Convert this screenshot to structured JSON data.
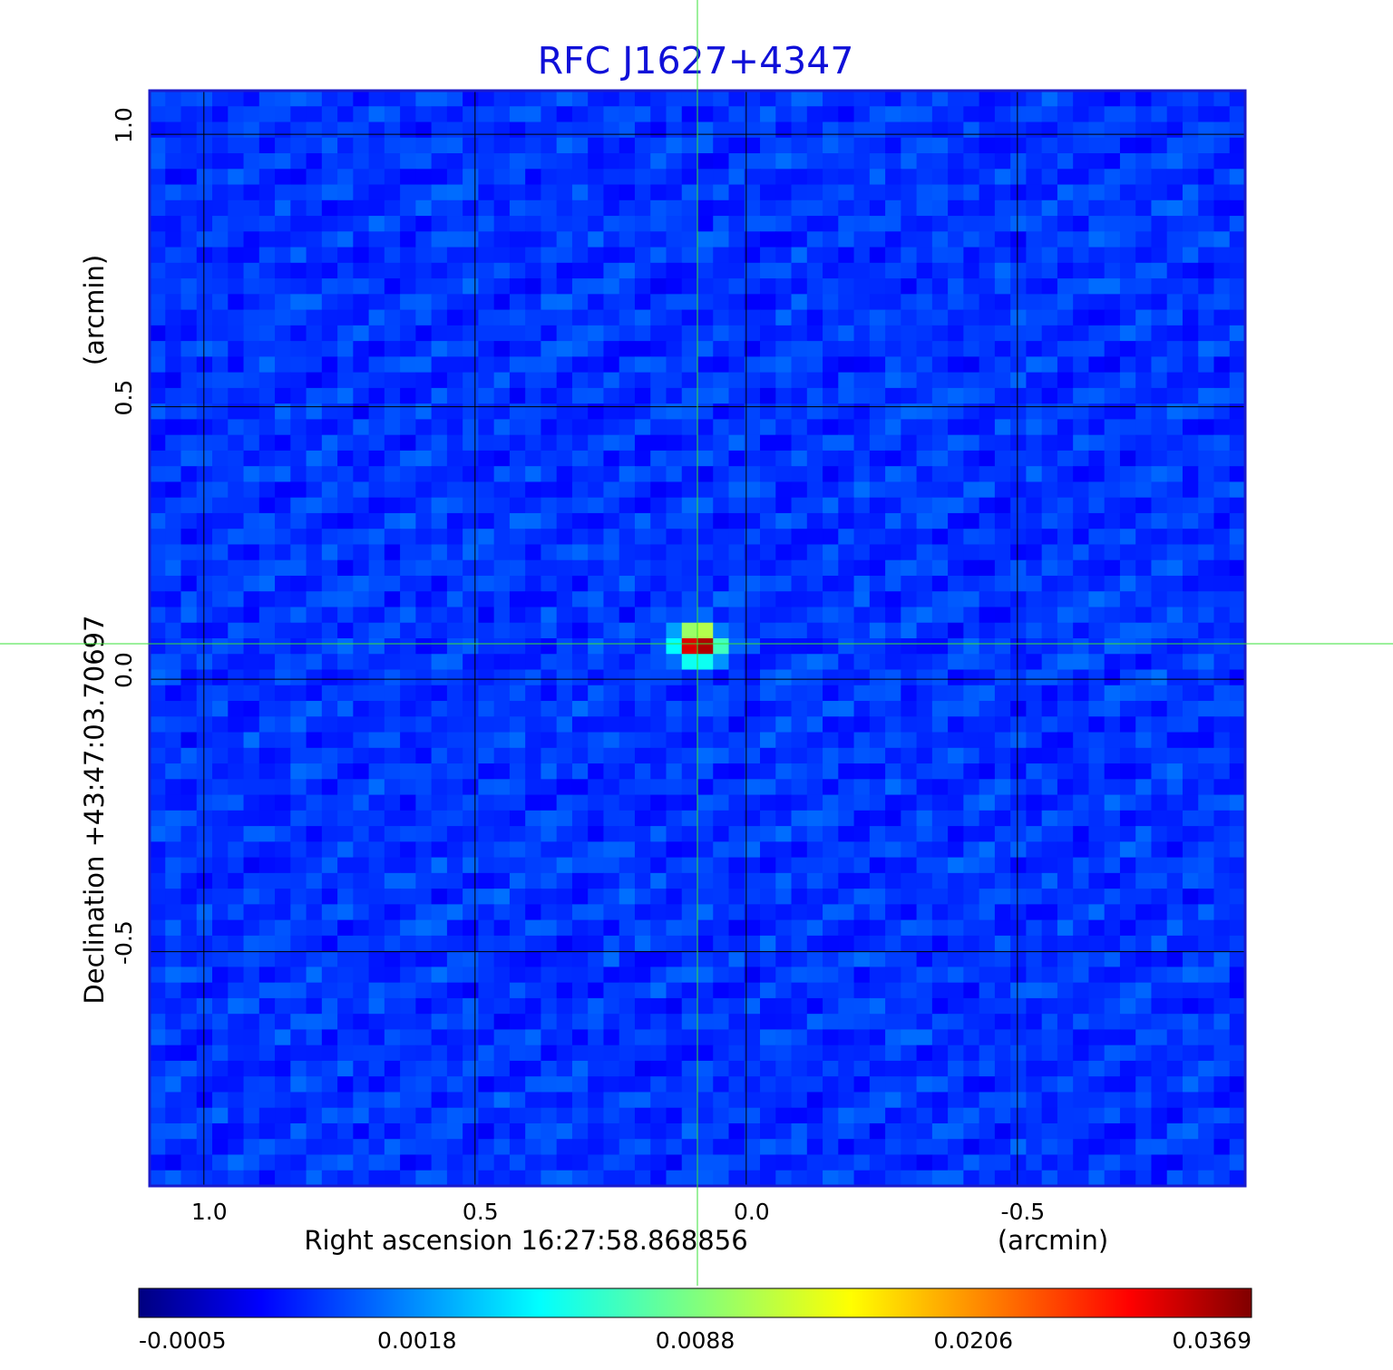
{
  "chart_data": {
    "type": "heatmap",
    "title": "RFC J1627+4347",
    "xlabel": "Right ascension  16:27:58.868856",
    "xunit": "(arcmin)",
    "ylabel": "Declination  +43:47:03.70697",
    "yunit": "(arcmin)",
    "x_axis_reversed": true,
    "xlim": [
      1.1,
      -0.92
    ],
    "ylim": [
      -0.93,
      1.08
    ],
    "x_ticks": [
      {
        "value": 1.0,
        "label": "1.0"
      },
      {
        "value": 0.5,
        "label": "0.5"
      },
      {
        "value": 0.0,
        "label": "0.0"
      },
      {
        "value": -0.5,
        "label": "-0.5"
      }
    ],
    "y_ticks": [
      {
        "value": 1.0,
        "label": "1.0"
      },
      {
        "value": 0.5,
        "label": "0.5"
      },
      {
        "value": 0.0,
        "label": "0.0"
      },
      {
        "value": -0.5,
        "label": "-0.5"
      }
    ],
    "grid": true,
    "colormap": "jet",
    "colorbar": {
      "position": "bottom",
      "tick_labels": [
        "-0.0005",
        "0.0018",
        "0.0088",
        "0.0206",
        "0.0369"
      ],
      "min": -0.0005,
      "max": 0.0369
    },
    "source": {
      "x": 0.09,
      "y": 0.065,
      "peak": 0.0369
    },
    "crosshair": {
      "x": 0.09,
      "y": 0.065
    },
    "colors": {
      "title": "#1010d8",
      "frame": "#1a1acc",
      "crosshair": "#38e038",
      "grid": "#000000",
      "text": "#000000"
    }
  }
}
